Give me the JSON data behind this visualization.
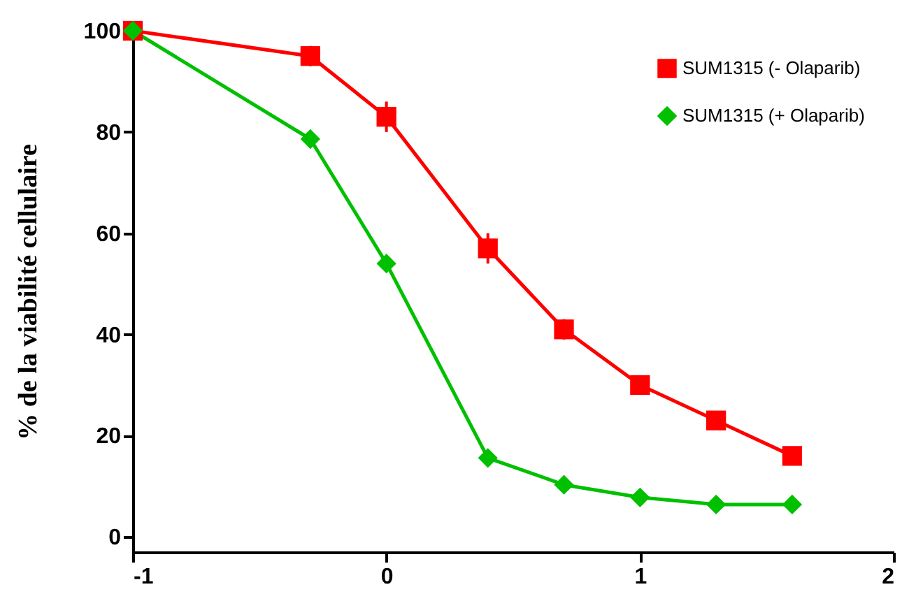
{
  "chart_data": {
    "type": "line",
    "ylabel": "% de la viabilité cellulaire",
    "x": [
      -1,
      -0.3,
      0,
      0.4,
      0.7,
      1,
      1.3,
      1.6
    ],
    "series": [
      {
        "name": "SUM1315 (- Olaparib)",
        "color": "#ff0000",
        "marker": "square",
        "values": [
          100,
          95,
          83,
          57,
          41,
          30,
          23,
          16
        ],
        "errors": [
          null,
          2,
          3,
          3,
          2,
          null,
          null,
          null
        ]
      },
      {
        "name": "SUM1315 (+ Olaparib)",
        "color": "#00c000",
        "marker": "diamond",
        "values": [
          100,
          78.6,
          54,
          15.6,
          10.3,
          7.8,
          6.4,
          6.4
        ]
      }
    ],
    "xlim": [
      -1,
      2
    ],
    "xticks": [
      -1,
      0,
      1,
      2
    ],
    "ylim": [
      -3,
      100
    ],
    "yticks": [
      0,
      20,
      40,
      60,
      80,
      100
    ],
    "grid": false,
    "legend": "top right",
    "line_style": "solid"
  }
}
